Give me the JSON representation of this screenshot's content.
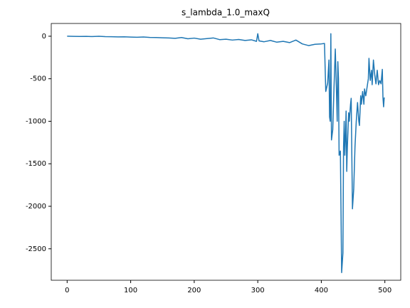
{
  "chart_data": {
    "type": "line",
    "title": "s_lambda_1.0_maxQ",
    "x": [
      0,
      10,
      20,
      30,
      40,
      50,
      60,
      70,
      80,
      90,
      100,
      110,
      120,
      130,
      140,
      150,
      160,
      170,
      180,
      190,
      200,
      210,
      220,
      230,
      240,
      250,
      260,
      270,
      280,
      290,
      298,
      300,
      302,
      310,
      320,
      330,
      340,
      350,
      360,
      370,
      380,
      390,
      400,
      405,
      407,
      410,
      412,
      413,
      414,
      415,
      416,
      418,
      420,
      422,
      424,
      425,
      426,
      427,
      428,
      430,
      432,
      434,
      435,
      436,
      437,
      438,
      439,
      440,
      441,
      443,
      444,
      446,
      447,
      449,
      451,
      453,
      455,
      457,
      459,
      460,
      462,
      463,
      465,
      467,
      468,
      470,
      472,
      474,
      475,
      477,
      479,
      480,
      482,
      484,
      486,
      488,
      490,
      492,
      494,
      496,
      497,
      498,
      499
    ],
    "series": [
      {
        "name": "s_lambda_1.0_maxQ",
        "color": "#1f77b4",
        "values": [
          0,
          -2,
          -3,
          -2,
          -4,
          -1,
          -5,
          -6,
          -8,
          -7,
          -10,
          -12,
          -9,
          -14,
          -15,
          -18,
          -20,
          -25,
          -15,
          -30,
          -22,
          -35,
          -28,
          -20,
          -40,
          -35,
          -45,
          -38,
          -50,
          -42,
          -60,
          30,
          -55,
          -65,
          -50,
          -70,
          -60,
          -75,
          -45,
          -90,
          -110,
          -95,
          -90,
          -85,
          -650,
          -550,
          -280,
          -950,
          -1000,
          30,
          -1220,
          -1100,
          -600,
          -150,
          -700,
          -1000,
          -300,
          -500,
          -1400,
          -1350,
          -2780,
          -2550,
          -1300,
          -1000,
          -1400,
          -1200,
          -880,
          -1590,
          -1300,
          -900,
          -1000,
          -800,
          -730,
          -2030,
          -1800,
          -1300,
          -1000,
          -780,
          -1000,
          -1050,
          -700,
          -800,
          -650,
          -800,
          -620,
          -700,
          -600,
          -500,
          -260,
          -520,
          -400,
          -570,
          -280,
          -450,
          -560,
          -400,
          -570,
          -520,
          -560,
          -390,
          -720,
          -830,
          -720
        ]
      }
    ],
    "xlim": [
      -25,
      525
    ],
    "xticks": [
      0,
      100,
      200,
      300,
      400,
      500
    ],
    "ylim": [
      -2870,
      150
    ],
    "yticks": [
      0,
      -500,
      -1000,
      -1500,
      -2000,
      -2500
    ]
  }
}
